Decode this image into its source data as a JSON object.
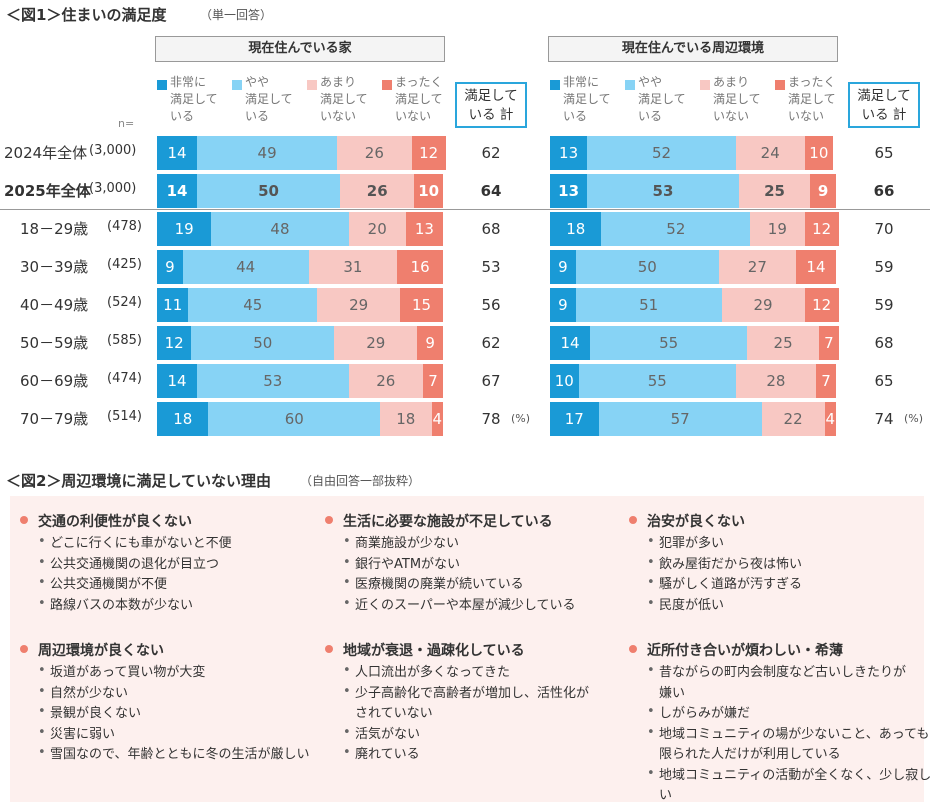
{
  "figure1": {
    "title": "＜図1＞住まいの満足度",
    "subtitle": "（単一回答）",
    "n_label": "n=",
    "categories": [
      "2024年全体",
      "2025年全体",
      "18－29歳",
      "30－39歳",
      "40－49歳",
      "50－59歳",
      "60－69歳",
      "70－79歳"
    ],
    "n_values": [
      "(3,000)",
      "(3,000)",
      "(478)",
      "(425)",
      "(524)",
      "(585)",
      "(474)",
      "(514)"
    ]
  },
  "chart_data": [
    {
      "type": "bar",
      "title": "現在住んでいる家",
      "xlim": [
        0,
        100
      ],
      "series": [
        {
          "name": "非常に\n満足して\nいる",
          "color": "#1a9ad6",
          "values": [
            14,
            14,
            19,
            9,
            11,
            12,
            14,
            18
          ]
        },
        {
          "name": "やや\n満足して\nいる",
          "color": "#87d3f5",
          "values": [
            49,
            50,
            48,
            44,
            45,
            50,
            53,
            60
          ]
        },
        {
          "name": "あまり\n満足して\nいない",
          "color": "#f8c8c3",
          "values": [
            26,
            26,
            20,
            31,
            29,
            29,
            26,
            18
          ]
        },
        {
          "name": "まったく\n満足して\nいない",
          "color": "#ef7f6e",
          "values": [
            12,
            10,
            13,
            16,
            15,
            9,
            7,
            4
          ]
        }
      ],
      "totals_label": "満足して\nいる 計",
      "totals": [
        62,
        64,
        68,
        53,
        56,
        62,
        67,
        78
      ],
      "unit": "(%)"
    },
    {
      "type": "bar",
      "title": "現在住んでいる周辺環境",
      "xlim": [
        0,
        100
      ],
      "series": [
        {
          "name": "非常に\n満足して\nいる",
          "color": "#1a9ad6",
          "values": [
            13,
            13,
            18,
            9,
            9,
            14,
            10,
            17
          ]
        },
        {
          "name": "やや\n満足して\nいる",
          "color": "#87d3f5",
          "values": [
            52,
            53,
            52,
            50,
            51,
            55,
            55,
            57
          ]
        },
        {
          "name": "あまり\n満足して\nいない",
          "color": "#f8c8c3",
          "values": [
            24,
            25,
            19,
            27,
            29,
            25,
            28,
            22
          ]
        },
        {
          "name": "まったく\n満足して\nいない",
          "color": "#ef7f6e",
          "values": [
            10,
            9,
            12,
            14,
            12,
            7,
            7,
            4
          ]
        }
      ],
      "totals_label": "満足して\nいる 計",
      "totals": [
        65,
        66,
        70,
        59,
        59,
        68,
        65,
        74
      ],
      "unit": "(%)"
    }
  ],
  "figure2": {
    "title": "＜図2＞周辺環境に満足していない理由",
    "subtitle": "（自由回答一部抜粋）",
    "groups": [
      {
        "heading": "交通の利便性が良くない",
        "items": [
          "どこに行くにも車がないと不便",
          "公共交通機関の退化が目立つ",
          "公共交通機関が不便",
          "路線バスの本数が少ない"
        ]
      },
      {
        "heading": "生活に必要な施設が不足している",
        "items": [
          "商業施設が少ない",
          "銀行やATMがない",
          "医療機関の廃業が続いている",
          "近くのスーパーや本屋が減少している"
        ]
      },
      {
        "heading": "治安が良くない",
        "items": [
          "犯罪が多い",
          "飲み屋街だから夜は怖い",
          "騒がしく道路が汚すぎる",
          "民度が低い"
        ]
      },
      {
        "heading": "周辺環境が良くない",
        "items": [
          "坂道があって買い物が大変",
          "自然が少ない",
          "景観が良くない",
          "災害に弱い",
          "雪国なので、年齢とともに冬の生活が厳しい"
        ]
      },
      {
        "heading": "地域が衰退・過疎化している",
        "items": [
          "人口流出が多くなってきた",
          "少子高齢化で高齢者が増加し、活性化が\nされていない",
          "活気がない",
          "廃れている"
        ]
      },
      {
        "heading": "近所付き合いが煩わしい・希薄",
        "items": [
          "昔ながらの町内会制度など古いしきたりが\n嫌い",
          "しがらみが嫌だ",
          "地域コミュニティの場が少ないこと、あっても\n限られた人だけが利用している",
          "地域コミュニティの活動が全くなく、少し寂しい"
        ]
      }
    ]
  }
}
